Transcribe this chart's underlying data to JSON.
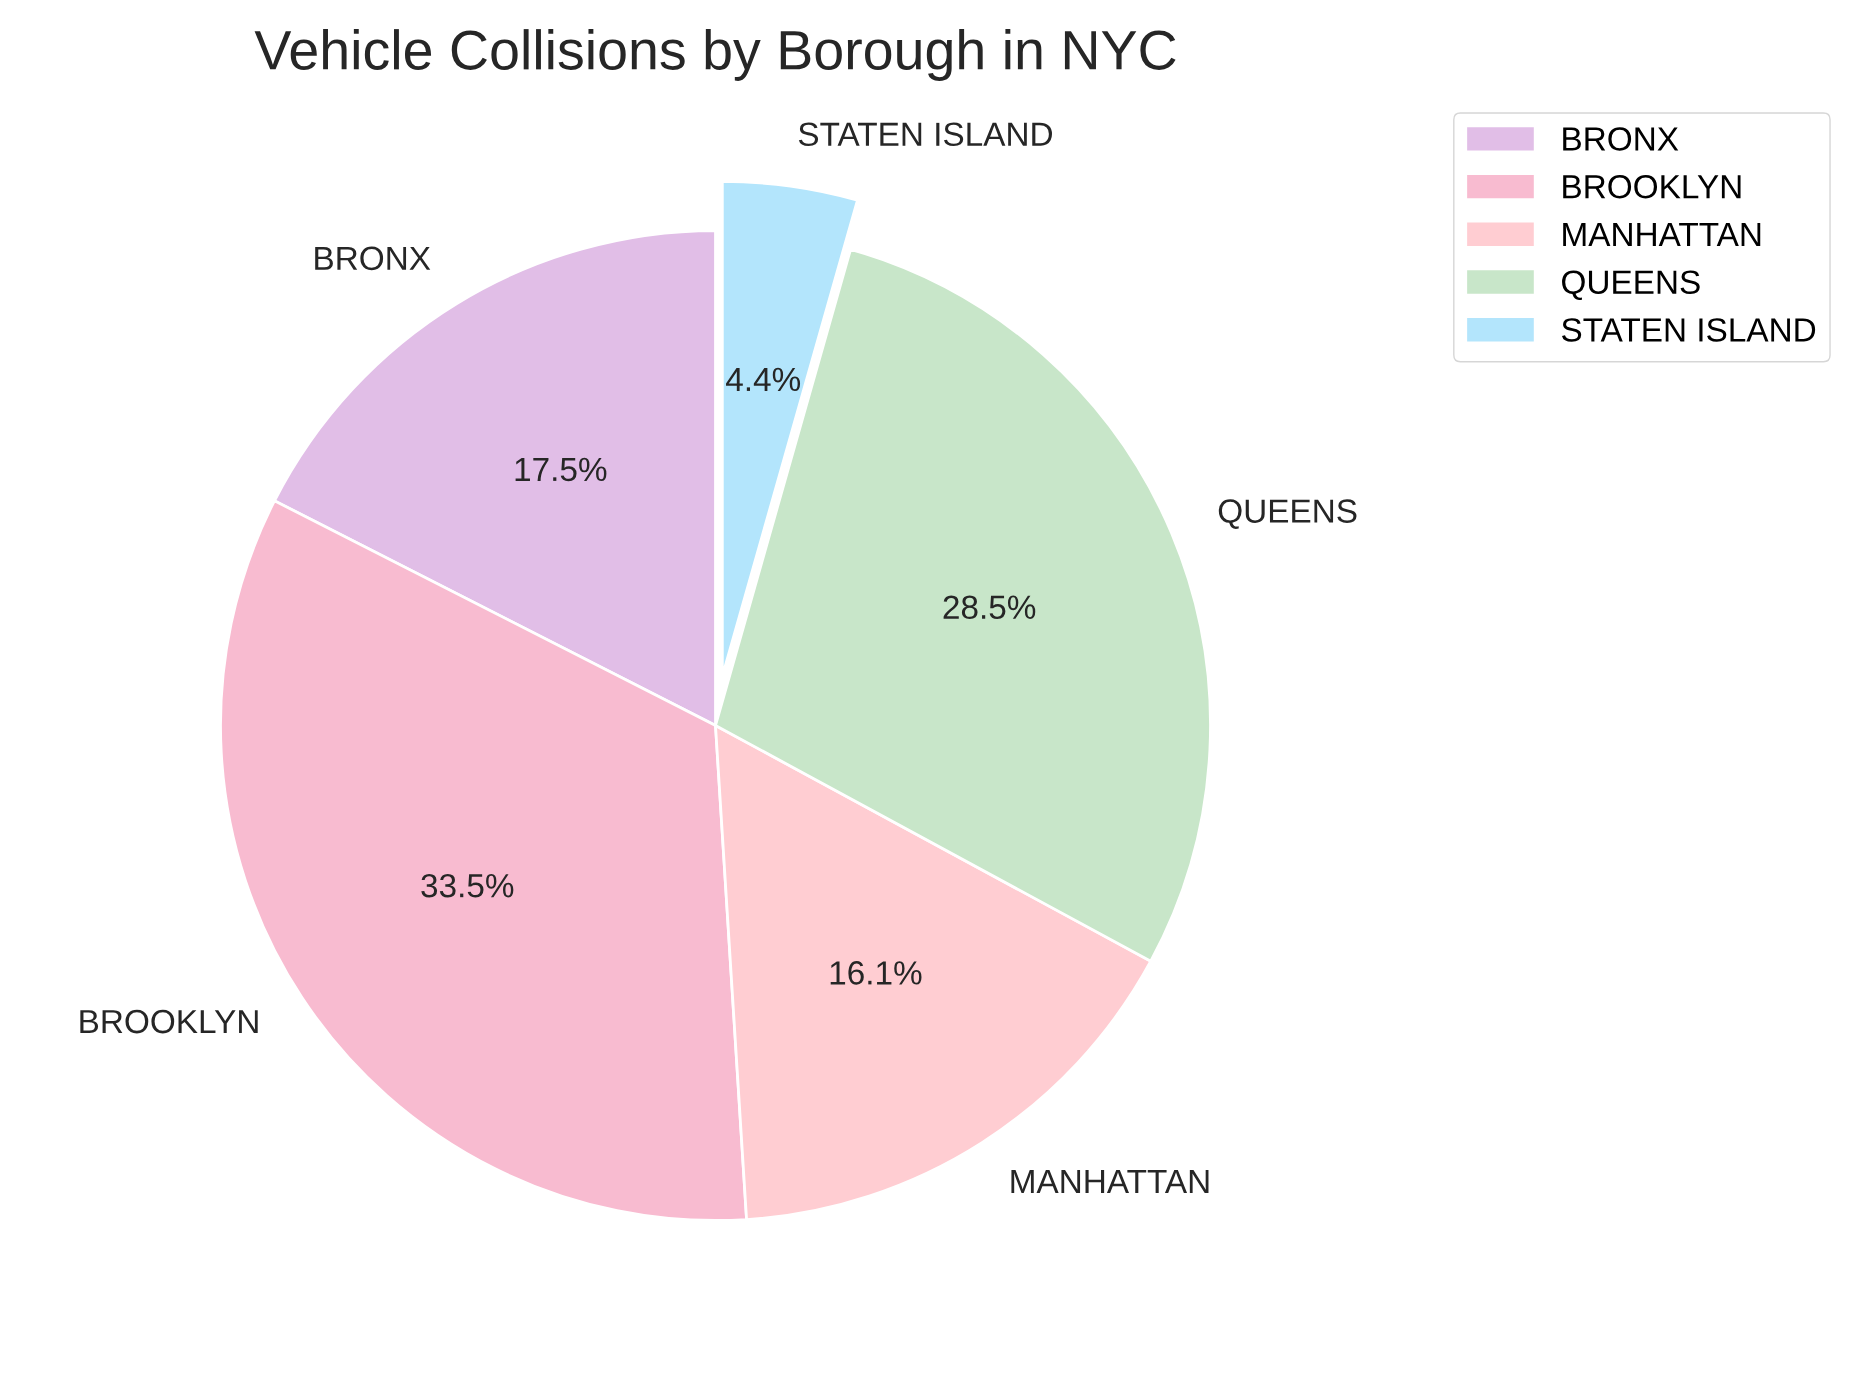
{
  "chart_data": {
    "type": "pie",
    "title": "Vehicle Collisions by Borough in NYC",
    "categories": [
      "BRONX",
      "BROOKLYN",
      "MANHATTAN",
      "QUEENS",
      "STATEN ISLAND"
    ],
    "values": [
      17.5,
      33.5,
      16.1,
      28.5,
      4.4
    ],
    "value_labels": [
      "17.5%",
      "33.5%",
      "16.1%",
      "28.5%",
      "4.4%"
    ],
    "colors": [
      "#e1bee7",
      "#f8bbd0",
      "#ffcdd2",
      "#c8e6c9",
      "#b3e5fc"
    ],
    "legend": "top right"
  }
}
